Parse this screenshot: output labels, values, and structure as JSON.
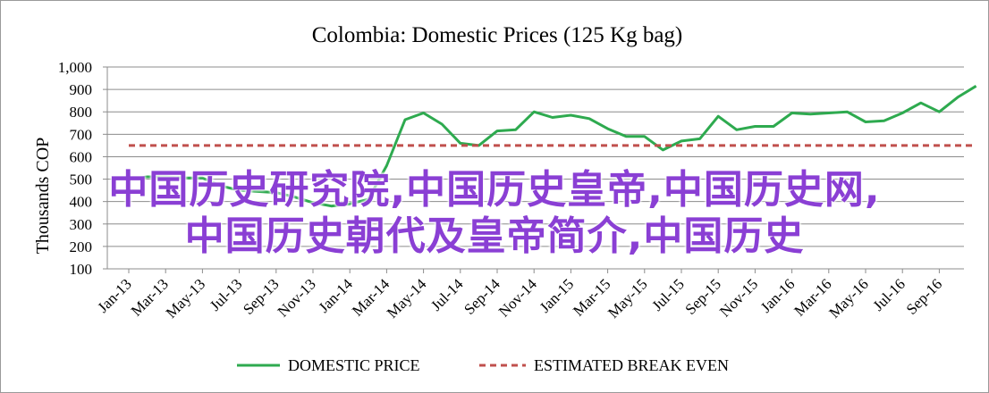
{
  "chart_data": {
    "type": "line",
    "title": "Colombia:  Domestic Prices (125 Kg bag)",
    "ylabel": "Thousands COP",
    "xlabel": "",
    "ylim": [
      100,
      1000
    ],
    "yticks": [
      100,
      200,
      300,
      400,
      500,
      600,
      700,
      800,
      900,
      1000
    ],
    "ytick_labels": [
      "100",
      "200",
      "300",
      "400",
      "500",
      "600",
      "700",
      "800",
      "900",
      "1,000"
    ],
    "grid": true,
    "legend_position": "bottom",
    "x_tick_labels": [
      "Jan-13",
      "Mar-13",
      "May-13",
      "Jul-13",
      "Sep-13",
      "Nov-13",
      "Jan-14",
      "Mar-14",
      "May-14",
      "Jul-14",
      "Sep-14",
      "Nov-14",
      "Jan-15",
      "Mar-15",
      "May-15",
      "Jul-15",
      "Sep-15",
      "Nov-15",
      "Jan-16",
      "Mar-16",
      "May-16",
      "Jul-16",
      "Sep-16"
    ],
    "months": [
      "Jan-13",
      "Feb-13",
      "Mar-13",
      "Apr-13",
      "May-13",
      "Jun-13",
      "Jul-13",
      "Aug-13",
      "Sep-13",
      "Oct-13",
      "Nov-13",
      "Dec-13",
      "Jan-14",
      "Feb-14",
      "Mar-14",
      "Apr-14",
      "May-14",
      "Jun-14",
      "Jul-14",
      "Aug-14",
      "Sep-14",
      "Oct-14",
      "Nov-14",
      "Dec-14",
      "Jan-15",
      "Feb-15",
      "Mar-15",
      "Apr-15",
      "May-15",
      "Jun-15",
      "Jul-15",
      "Aug-15",
      "Sep-15",
      "Oct-15",
      "Nov-15",
      "Dec-15",
      "Jan-16",
      "Feb-16",
      "Mar-16",
      "Apr-16",
      "May-16",
      "Jun-16",
      "Jul-16",
      "Aug-16",
      "Sep-16",
      "Oct-16",
      "Nov-16"
    ],
    "series": [
      {
        "name": "DOMESTIC PRICE",
        "color": "#2eaa4f",
        "style": "solid",
        "values": [
          500,
          510,
          510,
          505,
          505,
          470,
          450,
          445,
          440,
          420,
          395,
          380,
          390,
          410,
          560,
          765,
          795,
          745,
          660,
          650,
          715,
          720,
          800,
          775,
          785,
          770,
          725,
          690,
          690,
          630,
          670,
          680,
          780,
          720,
          735,
          735,
          795,
          790,
          795,
          800,
          755,
          760,
          795,
          840,
          800,
          865,
          915
        ]
      },
      {
        "name": "ESTIMATED BREAK EVEN",
        "color": "#c0504d",
        "style": "dashed",
        "values": [
          650,
          650,
          650,
          650,
          650,
          650,
          650,
          650,
          650,
          650,
          650,
          650,
          650,
          650,
          650,
          650,
          650,
          650,
          650,
          650,
          650,
          650,
          650,
          650,
          650,
          650,
          650,
          650,
          650,
          650,
          650,
          650,
          650,
          650,
          650,
          650,
          650,
          650,
          650,
          650,
          650,
          650,
          650,
          650,
          650,
          650,
          650
        ]
      }
    ]
  },
  "overlay": {
    "line1": "中国历史研究院,中国历史皇帝,中国历史网,",
    "line2": "中国历史朝代及皇帝简介,中国历史"
  }
}
